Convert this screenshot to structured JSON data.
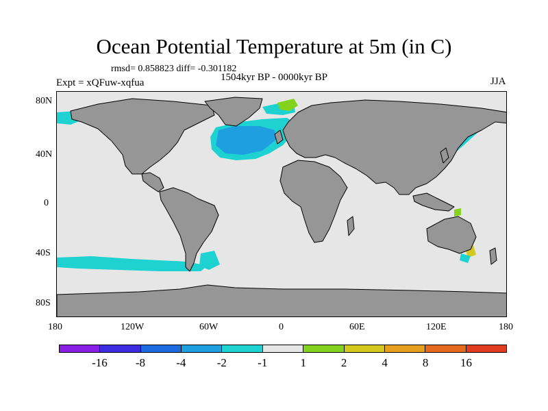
{
  "plot": {
    "title": "Ocean Potential Temperature at 5m (in C)",
    "stats": "rmsd= 0.858823 diff= -0.301182",
    "experiment": "Expt = xQFuw-xqfua",
    "period": "1504kyr BP - 0000kyr BP",
    "season": "JJA"
  },
  "axes": {
    "lat_labels": [
      "80N",
      "40N",
      "0",
      "40S",
      "80S"
    ],
    "lon_labels": [
      "180",
      "120W",
      "60W",
      "0",
      "60E",
      "120E",
      "180"
    ]
  },
  "colorbar": {
    "colors": [
      "#8a1ee6",
      "#3c2ee0",
      "#1e6be0",
      "#1ea0e0",
      "#1ed2d2",
      "#e6e6e6",
      "#82d21e",
      "#d2c81e",
      "#e6a01e",
      "#e6691e",
      "#e03c1e"
    ],
    "labels": [
      "-16",
      "-8",
      "-4",
      "-2",
      "-1",
      "1",
      "2",
      "4",
      "8",
      "16"
    ]
  },
  "map_colors": {
    "ocean": "#e6e6e6",
    "land": "#969696",
    "coast": "#000000",
    "cooling_light": "#1ed2d2",
    "cooling_medium": "#1ea0e0",
    "warming_light": "#82d21e"
  }
}
